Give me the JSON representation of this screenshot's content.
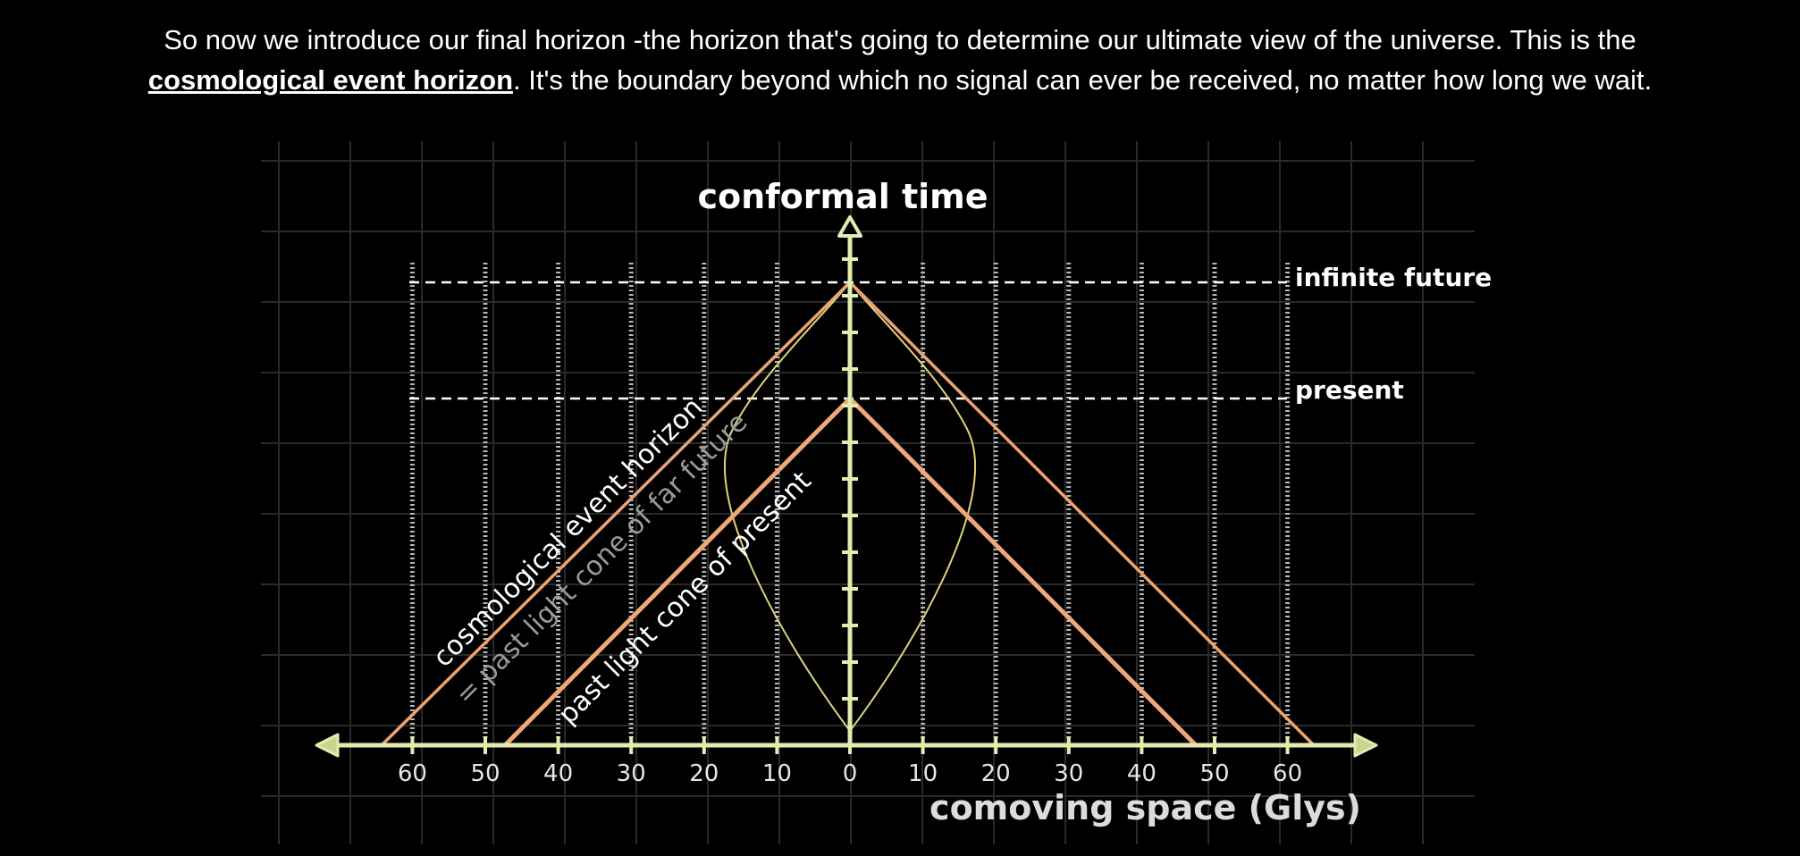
{
  "caption": {
    "line1": "So now we introduce our final horizon -the horizon that's going to determine our ultimate view of the universe. This is the",
    "term": "cosmological event horizon",
    "line2_rest": ". It's the boundary beyond which no signal can ever be received, no matter how long we wait."
  },
  "diagram": {
    "y_axis_label": "conformal time",
    "x_axis_label": "comoving space (Glys)",
    "x_ticks": [
      "60",
      "50",
      "40",
      "30",
      "20",
      "10",
      "0",
      "10",
      "20",
      "30",
      "40",
      "50",
      "60"
    ],
    "levels": {
      "infinite_future": "infinite future",
      "present": "present"
    },
    "curve_labels": {
      "event_horizon": "cosmological event horizon",
      "far_future": "= past light cone of far future",
      "present_cone": "past light cone of present"
    },
    "colors": {
      "axis": "#e3ecae",
      "present_cone": "#f0a779",
      "future_cone": "#e9a472",
      "teardrop": "#e0d27a",
      "grid": "#2a2a2a",
      "worldline": "#b8b8b8",
      "dashed": "#ffffff"
    }
  }
}
